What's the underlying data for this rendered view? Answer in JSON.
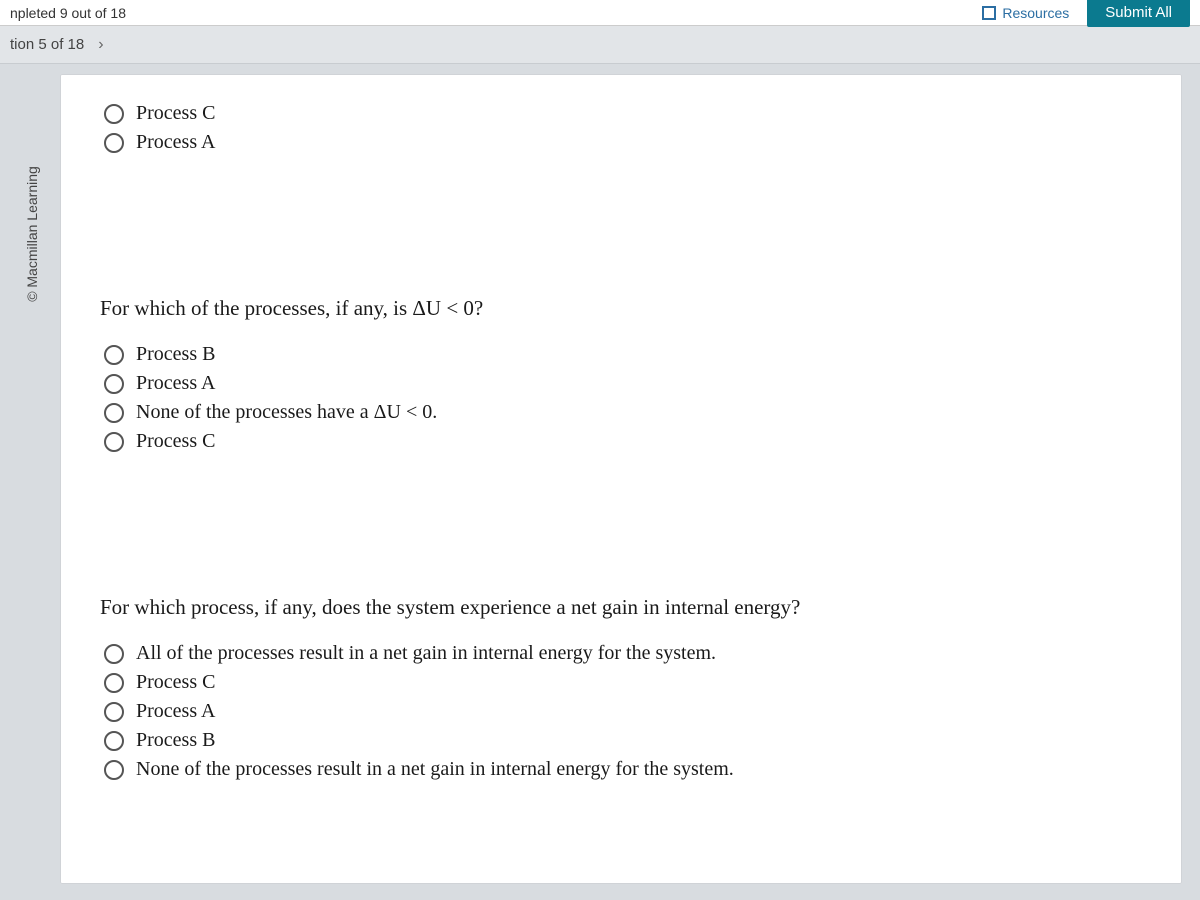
{
  "topbar": {
    "completed_text": "npleted 9 out of 18",
    "resources_label": "Resources",
    "submit_label": "Submit All"
  },
  "progress": {
    "position_text": "tion 5 of 18"
  },
  "copyright": "© Macmillan Learning",
  "groups": [
    {
      "prompt": null,
      "options": [
        "Process C",
        "Process A"
      ]
    },
    {
      "prompt": "For which of the processes, if any, is ΔU < 0?",
      "options": [
        "Process B",
        "Process A",
        "None of the processes have a ΔU < 0.",
        "Process C"
      ]
    },
    {
      "prompt": "For which process, if any, does the system experience a net gain in internal energy?",
      "options": [
        "All of the processes result in a net gain in internal energy for the system.",
        "Process C",
        "Process A",
        "Process B",
        "None of the processes result in a net gain in internal energy for the system."
      ]
    }
  ],
  "colors": {
    "page_bg": "#d8dce0",
    "panel_bg": "#ffffff",
    "submit_bg": "#0b7a8f",
    "accent_link": "#2b6ea3"
  }
}
